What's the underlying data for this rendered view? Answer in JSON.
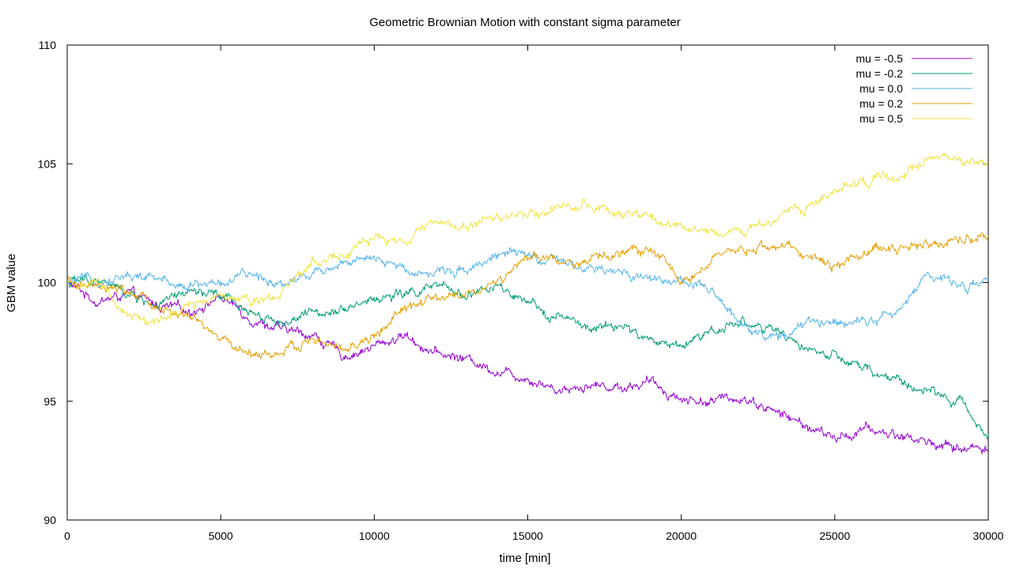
{
  "chart_data": {
    "type": "line",
    "title": "Geometric Brownian Motion with constant sigma parameter",
    "xlabel": "time [min]",
    "ylabel": "GBM value",
    "xlim": [
      0,
      30000
    ],
    "ylim": [
      90,
      110
    ],
    "x_ticks": [
      "0",
      "5000",
      "10000",
      "15000",
      "20000",
      "25000",
      "30000"
    ],
    "y_ticks": [
      "90",
      "95",
      "100",
      "105",
      "110"
    ],
    "grid": false,
    "legend_position": "top-right",
    "x": [
      0,
      1000,
      2000,
      3000,
      4000,
      5000,
      6000,
      7000,
      8000,
      9000,
      10000,
      11000,
      12000,
      13000,
      14000,
      15000,
      16000,
      17000,
      18000,
      19000,
      20000,
      21000,
      22000,
      23000,
      24000,
      25000,
      26000,
      27000,
      28000,
      29000,
      30000
    ],
    "series": [
      {
        "name": "mu = -0.5",
        "color": "#9400d3",
        "values": [
          100.0,
          99.2,
          99.5,
          99.0,
          98.8,
          99.4,
          98.5,
          98.0,
          97.8,
          96.9,
          97.3,
          97.8,
          97.0,
          96.8,
          96.3,
          96.0,
          95.5,
          95.7,
          95.6,
          95.8,
          95.1,
          95.0,
          95.2,
          94.6,
          94.0,
          93.4,
          93.8,
          93.6,
          93.3,
          93.0,
          93.1
        ]
      },
      {
        "name": "mu = -0.2",
        "color": "#009e73",
        "values": [
          100.0,
          100.1,
          99.5,
          99.0,
          99.6,
          99.4,
          98.8,
          98.3,
          98.7,
          99.0,
          99.3,
          99.5,
          99.8,
          99.5,
          99.8,
          99.0,
          98.6,
          98.0,
          98.2,
          97.5,
          97.4,
          98.0,
          98.4,
          97.9,
          97.3,
          96.8,
          96.3,
          95.9,
          95.4,
          95.0,
          93.6
        ]
      },
      {
        "name": "mu = 0.0",
        "color": "#56b4e9",
        "values": [
          100.0,
          100.1,
          100.3,
          100.1,
          99.9,
          100.0,
          100.3,
          100.0,
          100.4,
          100.9,
          100.9,
          100.6,
          100.4,
          100.6,
          101.2,
          101.1,
          100.8,
          100.5,
          100.4,
          100.2,
          100.1,
          99.5,
          98.3,
          97.6,
          98.2,
          98.4,
          98.5,
          98.6,
          100.4,
          99.9,
          100.0
        ]
      },
      {
        "name": "mu = 0.2",
        "color": "#e69f00",
        "values": [
          100.0,
          99.7,
          99.6,
          98.9,
          98.5,
          97.6,
          97.0,
          97.0,
          97.6,
          97.1,
          97.7,
          98.9,
          99.3,
          99.5,
          100.0,
          101.0,
          101.0,
          100.8,
          101.3,
          101.4,
          100.1,
          100.9,
          101.3,
          101.6,
          101.2,
          100.7,
          101.3,
          101.5,
          101.6,
          101.8,
          102.0
        ]
      },
      {
        "name": "mu = 0.5",
        "color": "#f0e442",
        "values": [
          100.0,
          99.9,
          98.6,
          98.3,
          99.0,
          99.6,
          99.3,
          99.6,
          101.0,
          101.2,
          101.8,
          101.7,
          102.6,
          102.3,
          102.8,
          102.9,
          103.2,
          103.3,
          102.8,
          102.7,
          102.2,
          102.3,
          102.0,
          102.8,
          103.1,
          103.9,
          104.2,
          104.4,
          105.3,
          105.2,
          105.0
        ]
      }
    ]
  }
}
